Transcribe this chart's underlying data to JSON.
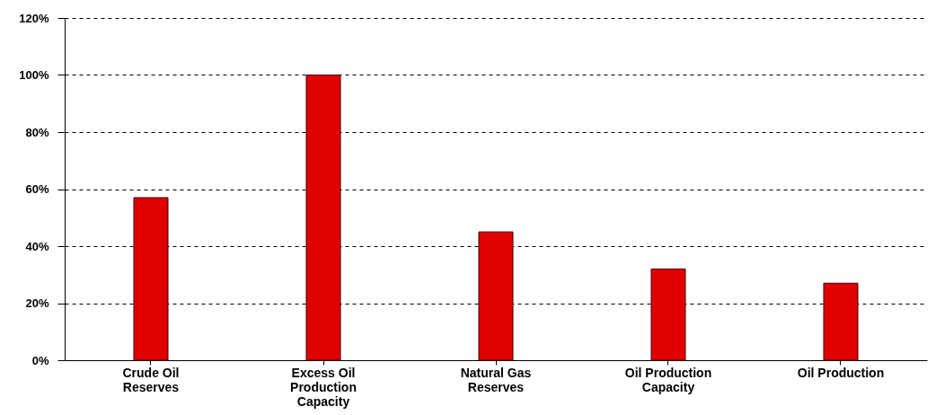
{
  "chart_data": {
    "type": "bar",
    "categories": [
      "Crude Oil Reserves",
      "Excess Oil Production Capacity",
      "Natural Gas Reserves",
      "Oil Production Capacity",
      "Oil Production"
    ],
    "values": [
      57,
      100,
      45,
      32,
      27
    ],
    "color": "#e00000",
    "ylim": [
      0,
      120
    ],
    "yticks": [
      {
        "value": 0,
        "label": "0%"
      },
      {
        "value": 20,
        "label": "20%"
      },
      {
        "value": 40,
        "label": "40%"
      },
      {
        "value": 60,
        "label": "60%"
      },
      {
        "value": 80,
        "label": "80%"
      },
      {
        "value": 100,
        "label": "100%"
      },
      {
        "value": 120,
        "label": "120%"
      }
    ],
    "grid": "y"
  }
}
